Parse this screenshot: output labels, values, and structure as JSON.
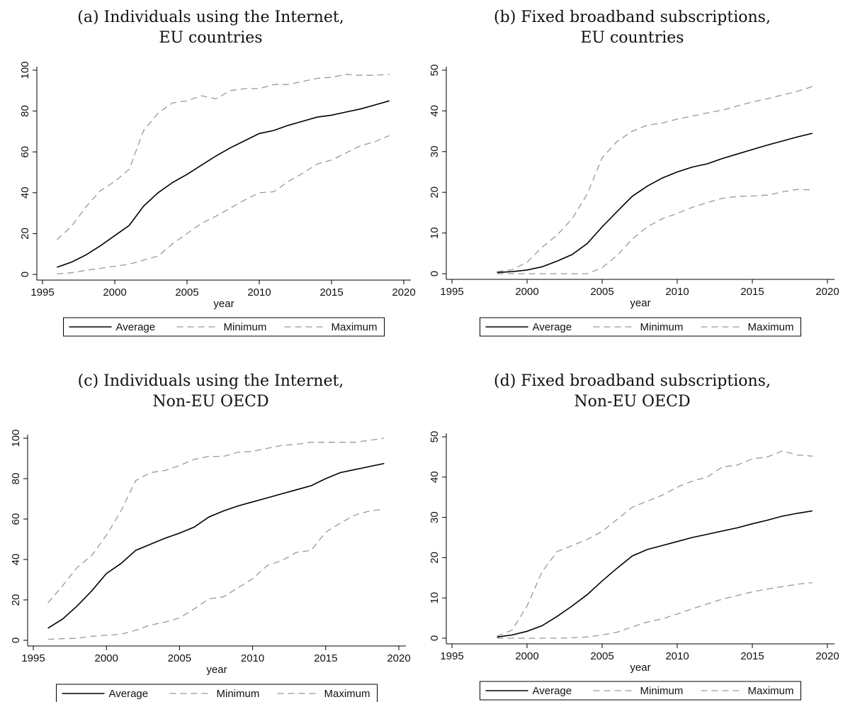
{
  "legend": {
    "average": "Average",
    "minimum": "Minimum",
    "maximum": "Maximum"
  },
  "colors": {
    "average": "#000000",
    "minimum": "#999999",
    "maximum": "#999999",
    "axis": "#000000"
  },
  "chart_data": [
    {
      "id": "a",
      "type": "line",
      "title_line1": "(a) Individuals using the Internet,",
      "title_line2": "EU countries",
      "xlabel": "year",
      "ylabel": "",
      "xlim": [
        1995,
        2020
      ],
      "ylim": [
        0,
        100
      ],
      "xticks": [
        1995,
        2000,
        2005,
        2010,
        2015,
        2020
      ],
      "yticks": [
        0,
        20,
        40,
        60,
        80,
        100
      ],
      "x": [
        1996,
        1997,
        1998,
        1999,
        2000,
        2001,
        2002,
        2003,
        2004,
        2005,
        2006,
        2007,
        2008,
        2009,
        2010,
        2011,
        2012,
        2013,
        2014,
        2015,
        2016,
        2017,
        2018,
        2019
      ],
      "series": [
        {
          "name": "Average",
          "key": "average",
          "values": [
            3.5,
            6,
            9.5,
            14,
            19,
            24,
            33.5,
            40,
            45,
            49,
            53.5,
            58,
            62,
            65.5,
            69,
            70.5,
            73,
            75,
            77,
            78,
            79.5,
            81,
            83,
            85
          ]
        },
        {
          "name": "Minimum",
          "key": "minimum",
          "values": [
            0.3,
            0.8,
            2,
            3,
            4,
            5,
            7,
            9,
            15,
            20,
            25,
            28.5,
            32.5,
            36.5,
            40,
            40.5,
            45.5,
            49.5,
            54,
            56,
            59.5,
            63,
            65,
            68
          ]
        },
        {
          "name": "Maximum",
          "key": "maximum",
          "values": [
            17,
            23.5,
            33,
            41,
            45.5,
            51.5,
            70.5,
            79,
            84,
            85,
            87.5,
            86,
            90,
            91,
            91,
            93,
            93,
            94.5,
            96,
            96.5,
            98,
            97.5,
            97.5,
            98
          ]
        }
      ],
      "legend_position": "bottom"
    },
    {
      "id": "b",
      "type": "line",
      "title_line1": "(b) Fixed broadband subscriptions,",
      "title_line2": "EU countries",
      "xlabel": "year",
      "ylabel": "",
      "xlim": [
        1995,
        2020
      ],
      "ylim": [
        0,
        50
      ],
      "xticks": [
        1995,
        2000,
        2005,
        2010,
        2015,
        2020
      ],
      "yticks": [
        0,
        10,
        20,
        30,
        40,
        50
      ],
      "x": [
        1998,
        1999,
        2000,
        2001,
        2002,
        2003,
        2004,
        2005,
        2006,
        2007,
        2008,
        2009,
        2010,
        2011,
        2012,
        2013,
        2014,
        2015,
        2016,
        2017,
        2018,
        2019
      ],
      "series": [
        {
          "name": "Average",
          "key": "average",
          "values": [
            0.3,
            0.5,
            0.9,
            1.7,
            3.1,
            4.7,
            7.4,
            11.5,
            15.3,
            19,
            21.5,
            23.5,
            25,
            26.2,
            27,
            28.3,
            29.4,
            30.5,
            31.6,
            32.6,
            33.6,
            34.5
          ]
        },
        {
          "name": "Minimum",
          "key": "minimum",
          "values": [
            0,
            0,
            0,
            0,
            0,
            0,
            0,
            1.5,
            4.5,
            8.5,
            11.5,
            13.5,
            14.8,
            16.3,
            17.5,
            18.5,
            19,
            19.1,
            19.3,
            20.1,
            20.7,
            20.6
          ]
        },
        {
          "name": "Maximum",
          "key": "maximum",
          "values": [
            0.5,
            1,
            2.8,
            6.5,
            9.5,
            13.5,
            19.5,
            28.5,
            32.5,
            35,
            36.5,
            37,
            38,
            38.7,
            39.5,
            40.2,
            41.2,
            42.2,
            43,
            43.9,
            44.8,
            46
          ]
        }
      ],
      "legend_position": "bottom"
    },
    {
      "id": "c",
      "type": "line",
      "title_line1": "(c) Individuals using the Internet,",
      "title_line2": "Non-EU OECD",
      "xlabel": "year",
      "ylabel": "",
      "xlim": [
        1995,
        2020
      ],
      "ylim": [
        0,
        100
      ],
      "xticks": [
        1995,
        2000,
        2005,
        2010,
        2015,
        2020
      ],
      "yticks": [
        0,
        20,
        40,
        60,
        80,
        100
      ],
      "x": [
        1996,
        1997,
        1998,
        1999,
        2000,
        2001,
        2002,
        2003,
        2004,
        2005,
        2006,
        2007,
        2008,
        2009,
        2010,
        2011,
        2012,
        2013,
        2014,
        2015,
        2016,
        2017,
        2018,
        2019
      ],
      "series": [
        {
          "name": "Average",
          "key": "average",
          "values": [
            6,
            10.5,
            17,
            24.5,
            33,
            38,
            44.5,
            47.5,
            50.5,
            53,
            56,
            61,
            64,
            66.5,
            68.5,
            70.5,
            72.5,
            74.5,
            76.5,
            80,
            83,
            84.5,
            86,
            87.5
          ]
        },
        {
          "name": "Minimum",
          "key": "minimum",
          "values": [
            0.5,
            0.8,
            1,
            2,
            2.5,
            3,
            5,
            7.5,
            9,
            11,
            15.5,
            20.5,
            21.5,
            26,
            30.5,
            37,
            39.5,
            43.5,
            44.5,
            53.5,
            58,
            62,
            64,
            65
          ]
        },
        {
          "name": "Maximum",
          "key": "maximum",
          "values": [
            18.5,
            27,
            36,
            42,
            52,
            64,
            79,
            83,
            84,
            86.5,
            89.5,
            91,
            91,
            93,
            93.5,
            95,
            96.5,
            97,
            98,
            98,
            98,
            98,
            99,
            100
          ]
        }
      ],
      "legend_position": "bottom"
    },
    {
      "id": "d",
      "type": "line",
      "title_line1": "(d) Fixed broadband subscriptions,",
      "title_line2": "Non-EU OECD",
      "xlabel": "year",
      "ylabel": "",
      "xlim": [
        1995,
        2020
      ],
      "ylim": [
        0,
        50
      ],
      "xticks": [
        1995,
        2000,
        2005,
        2010,
        2015,
        2020
      ],
      "yticks": [
        0,
        10,
        20,
        30,
        40,
        50
      ],
      "x": [
        1998,
        1999,
        2000,
        2001,
        2002,
        2003,
        2004,
        2005,
        2006,
        2007,
        2008,
        2009,
        2010,
        2011,
        2012,
        2013,
        2014,
        2015,
        2016,
        2017,
        2018,
        2019
      ],
      "series": [
        {
          "name": "Average",
          "key": "average",
          "values": [
            0.3,
            0.8,
            1.7,
            3.1,
            5.4,
            8,
            10.8,
            14.2,
            17.4,
            20.4,
            22,
            23,
            24,
            25,
            25.8,
            26.6,
            27.4,
            28.4,
            29.3,
            30.3,
            31,
            31.6
          ]
        },
        {
          "name": "Minimum",
          "key": "minimum",
          "values": [
            0,
            0,
            0,
            0,
            0,
            0.1,
            0.3,
            0.8,
            1.5,
            2.8,
            4,
            4.8,
            6,
            7.3,
            8.5,
            9.7,
            10.6,
            11.5,
            12.2,
            12.8,
            13.4,
            13.8
          ]
        },
        {
          "name": "Maximum",
          "key": "maximum",
          "values": [
            0.5,
            2,
            8,
            16.5,
            21.5,
            23,
            24.5,
            26.5,
            29.5,
            32.5,
            34,
            35.5,
            37.5,
            39,
            40,
            42.5,
            43,
            44.5,
            45,
            46.5,
            45.5,
            45.2
          ]
        }
      ],
      "legend_position": "bottom"
    }
  ]
}
